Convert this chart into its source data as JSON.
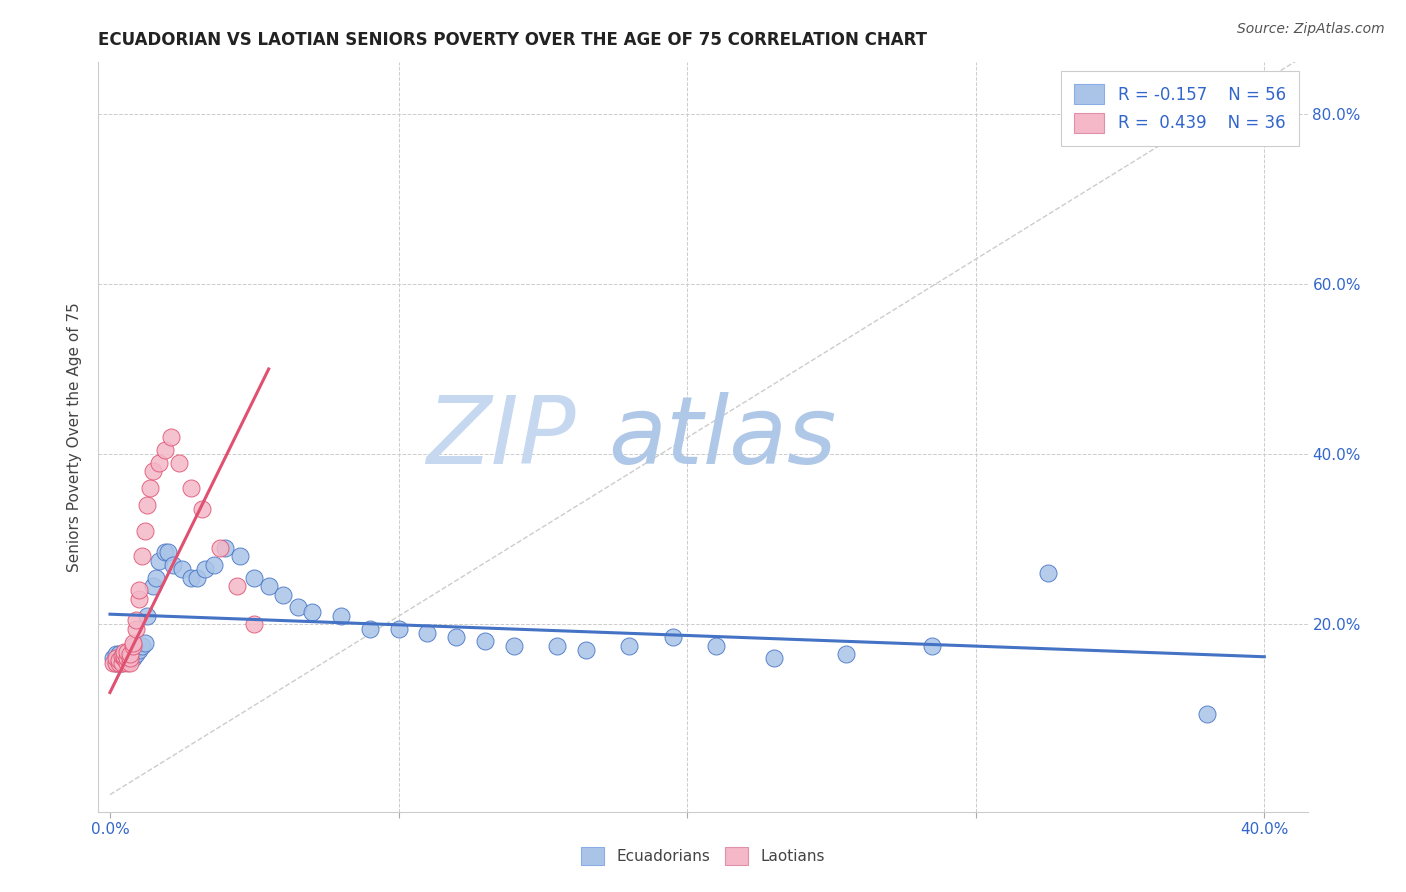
{
  "title": "ECUADORIAN VS LAOTIAN SENIORS POVERTY OVER THE AGE OF 75 CORRELATION CHART",
  "source": "Source: ZipAtlas.com",
  "ylabel": "Seniors Poverty Over the Age of 75",
  "xlim": [
    -0.004,
    0.415
  ],
  "ylim": [
    -0.02,
    0.86
  ],
  "xticks": [
    0.0,
    0.1,
    0.2,
    0.3,
    0.4
  ],
  "xticklabels": [
    "0.0%",
    "",
    "",
    "",
    "40.0%"
  ],
  "yticks": [
    0.0,
    0.2,
    0.4,
    0.6,
    0.8
  ],
  "yticklabels": [
    "",
    "20.0%",
    "40.0%",
    "60.0%",
    "80.0%"
  ],
  "background_color": "#ffffff",
  "grid_color": "#cccccc",
  "ecuadorians_color": "#aac4e8",
  "laotians_color": "#f4b8c8",
  "trendline_ecuadorians_color": "#4472c4",
  "trendline_laotians_color": "#e05070",
  "watermark_zip_color": "#c5d8f0",
  "watermark_atlas_color": "#b8cce8",
  "legend_line1": "R = -0.157    N = 56",
  "legend_line2": "R =  0.439    N = 36",
  "ecuadorians_x": [
    0.001,
    0.002,
    0.002,
    0.003,
    0.003,
    0.003,
    0.004,
    0.004,
    0.005,
    0.005,
    0.006,
    0.006,
    0.007,
    0.007,
    0.008,
    0.008,
    0.009,
    0.01,
    0.011,
    0.012,
    0.013,
    0.015,
    0.016,
    0.017,
    0.019,
    0.02,
    0.022,
    0.025,
    0.028,
    0.03,
    0.033,
    0.036,
    0.04,
    0.045,
    0.05,
    0.055,
    0.06,
    0.065,
    0.07,
    0.08,
    0.09,
    0.1,
    0.11,
    0.12,
    0.13,
    0.14,
    0.155,
    0.165,
    0.18,
    0.195,
    0.21,
    0.23,
    0.255,
    0.285,
    0.325,
    0.38
  ],
  "ecuadorians_y": [
    0.16,
    0.155,
    0.165,
    0.155,
    0.16,
    0.165,
    0.155,
    0.163,
    0.156,
    0.162,
    0.158,
    0.165,
    0.158,
    0.165,
    0.16,
    0.17,
    0.165,
    0.17,
    0.175,
    0.178,
    0.21,
    0.245,
    0.255,
    0.275,
    0.285,
    0.285,
    0.27,
    0.265,
    0.255,
    0.255,
    0.265,
    0.27,
    0.29,
    0.28,
    0.255,
    0.245,
    0.235,
    0.22,
    0.215,
    0.21,
    0.195,
    0.195,
    0.19,
    0.185,
    0.18,
    0.175,
    0.175,
    0.17,
    0.175,
    0.185,
    0.175,
    0.16,
    0.165,
    0.175,
    0.26,
    0.095
  ],
  "laotians_x": [
    0.001,
    0.002,
    0.002,
    0.003,
    0.003,
    0.004,
    0.004,
    0.005,
    0.005,
    0.005,
    0.006,
    0.006,
    0.006,
    0.007,
    0.007,
    0.007,
    0.008,
    0.008,
    0.009,
    0.009,
    0.01,
    0.01,
    0.011,
    0.012,
    0.013,
    0.014,
    0.015,
    0.017,
    0.019,
    0.021,
    0.024,
    0.028,
    0.032,
    0.038,
    0.044,
    0.05
  ],
  "laotians_y": [
    0.155,
    0.155,
    0.16,
    0.155,
    0.158,
    0.155,
    0.163,
    0.16,
    0.163,
    0.168,
    0.155,
    0.16,
    0.168,
    0.155,
    0.16,
    0.165,
    0.175,
    0.178,
    0.195,
    0.205,
    0.23,
    0.24,
    0.28,
    0.31,
    0.34,
    0.36,
    0.38,
    0.39,
    0.405,
    0.42,
    0.39,
    0.36,
    0.335,
    0.29,
    0.245,
    0.2
  ],
  "trendline_ecu_x0": 0.0,
  "trendline_ecu_x1": 0.4,
  "trendline_lao_x0": 0.0,
  "trendline_lao_x1": 0.055
}
